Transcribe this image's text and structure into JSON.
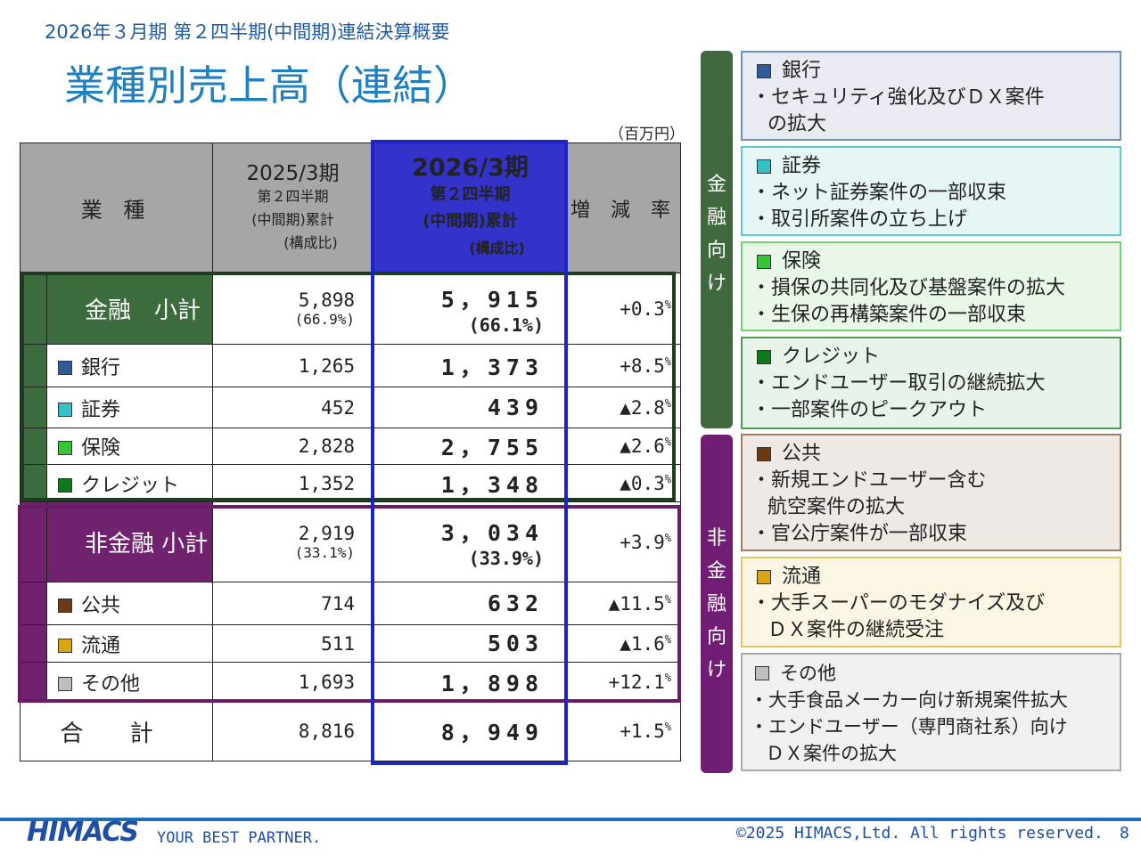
{
  "header": {
    "subtitle": "2026年３月期 第２四半期(中間期)連結決算概要",
    "title": "業種別売上高（連結）",
    "unit": "（百万円）"
  },
  "table": {
    "col_segment": "業 種",
    "col_prev": [
      "2025/3期",
      "第２四半期",
      "(中間期)累計",
      "(構成比)"
    ],
    "col_cur": [
      "2026/3期",
      "第２四半期",
      "(中間期)累計",
      "(構成比)"
    ],
    "col_rate": "増 減 率",
    "finance_subtotal": {
      "label": "金融　小計",
      "prev": "5,898",
      "prev_ratio": "(66.9%)",
      "cur": "5，915",
      "cur_ratio": "(66.1%)",
      "rate": "+0.3",
      "rate_unit": "%"
    },
    "finance_rows": [
      {
        "label": "銀行",
        "color": "#2e5b9a",
        "prev": "1,265",
        "cur": "1，373",
        "rate": "+8.5",
        "rate_unit": "%"
      },
      {
        "label": "証券",
        "color": "#35c1c7",
        "prev": "452",
        "cur": "439",
        "rate": "▲2.8",
        "rate_unit": "%"
      },
      {
        "label": "保険",
        "color": "#38c438",
        "prev": "2,828",
        "cur": "2，755",
        "rate": "▲2.6",
        "rate_unit": "%"
      },
      {
        "label": "クレジット",
        "color": "#0e7a17",
        "prev": "1,352",
        "cur": "1，348",
        "rate": "▲0.3",
        "rate_unit": "%"
      }
    ],
    "nonfinance_subtotal": {
      "label": "非金融 小計",
      "prev": "2,919",
      "prev_ratio": "(33.1%)",
      "cur": "3，034",
      "cur_ratio": "(33.9%)",
      "rate": "+3.9",
      "rate_unit": "%"
    },
    "nonfinance_rows": [
      {
        "label": "公共",
        "color": "#6b3a12",
        "prev": "714",
        "cur": "632",
        "rate": "▲11.5",
        "rate_unit": "%"
      },
      {
        "label": "流通",
        "color": "#d9a514",
        "prev": "511",
        "cur": "503",
        "rate": "▲1.6",
        "rate_unit": "%"
      },
      {
        "label": "その他",
        "color": "#bfbfbf",
        "prev": "1,693",
        "cur": "1，898",
        "rate": "+12.1",
        "rate_unit": "%"
      }
    ],
    "total": {
      "label": "合 計",
      "prev": "8,816",
      "cur": "8，949",
      "rate": "+1.5",
      "rate_unit": "%"
    }
  },
  "side": {
    "finance_label": [
      "金",
      "融",
      "向",
      "け"
    ],
    "nonfinance_label": [
      "非",
      "金",
      "融",
      "向",
      "け"
    ],
    "cards": [
      {
        "title": "銀行",
        "color": "#2e5b9a",
        "bg": "#e8ecf2",
        "border": "#6f8fb5",
        "lines": [
          "・セキュリティ強化及びＤＸ案件",
          "の拡大"
        ]
      },
      {
        "title": "証券",
        "color": "#35c1c7",
        "bg": "#e6f6f7",
        "border": "#60c9ce",
        "lines": [
          "・ネット証券案件の一部収束",
          "・取引所案件の立ち上げ"
        ]
      },
      {
        "title": "保険",
        "color": "#38c438",
        "bg": "#e9f7e8",
        "border": "#73cf73",
        "lines": [
          "・損保の共同化及び基盤案件の拡大",
          "・生保の再構築案件の一部収束"
        ]
      },
      {
        "title": "クレジット",
        "color": "#0e7a17",
        "bg": "#e8f3ea",
        "border": "#4f9b58",
        "lines": [
          "・エンドユーザー取引の継続拡大",
          "・一部案件のピークアウト"
        ]
      },
      {
        "title": "公共",
        "color": "#6b3a12",
        "bg": "#efe9e5",
        "border": "#9c7d66",
        "lines": [
          "・新規エンドユーザー含む",
          "航空案件の拡大",
          "・官公庁案件が一部収束"
        ]
      },
      {
        "title": "流通",
        "color": "#d9a514",
        "bg": "#fbf5e3",
        "border": "#e1c55e",
        "lines": [
          "・大手スーパーのモダナイズ及び",
          "ＤＸ案件の継続受注"
        ]
      },
      {
        "title": "その他",
        "color": "#bfbfbf",
        "bg": "#f0f0f0",
        "border": "#aaaaaa",
        "lines": [
          "・大手食品メーカー向け新規案件拡大",
          "・エンドユーザー（専門商社系）向け",
          "ＤＸ案件の拡大"
        ]
      }
    ]
  },
  "footer": {
    "logo": "HIMACS",
    "tagline": "YOUR BEST PARTNER.",
    "copyright": "©2025 HIMACS,Ltd. All rights reserved.",
    "page": "8"
  }
}
